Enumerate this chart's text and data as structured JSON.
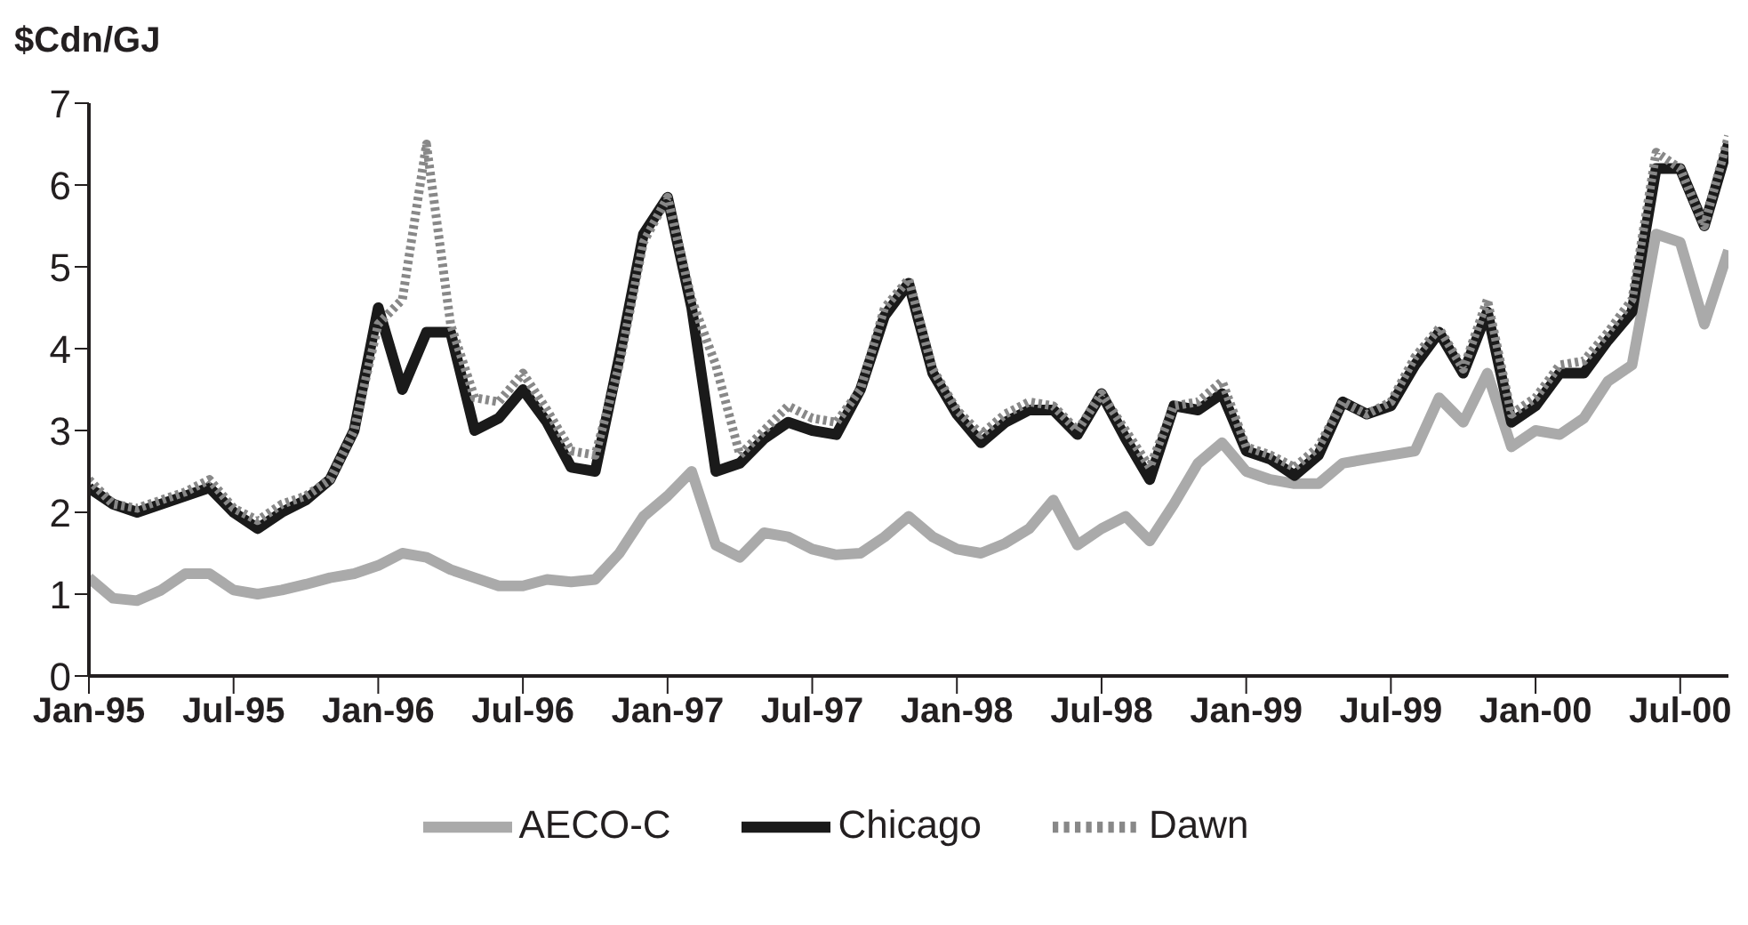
{
  "chart_data": {
    "type": "line",
    "ylabel": "$Cdn/GJ",
    "x": [
      "1995-01",
      "1995-02",
      "1995-03",
      "1995-04",
      "1995-05",
      "1995-06",
      "1995-07",
      "1995-08",
      "1995-09",
      "1995-10",
      "1995-11",
      "1995-12",
      "1996-01",
      "1996-02",
      "1996-03",
      "1996-04",
      "1996-05",
      "1996-06",
      "1996-07",
      "1996-08",
      "1996-09",
      "1996-10",
      "1996-11",
      "1996-12",
      "1997-01",
      "1997-02",
      "1997-03",
      "1997-04",
      "1997-05",
      "1997-06",
      "1997-07",
      "1997-08",
      "1997-09",
      "1997-10",
      "1997-11",
      "1997-12",
      "1998-01",
      "1998-02",
      "1998-03",
      "1998-04",
      "1998-05",
      "1998-06",
      "1998-07",
      "1998-08",
      "1998-09",
      "1998-10",
      "1998-11",
      "1998-12",
      "1999-01",
      "1999-02",
      "1999-03",
      "1999-04",
      "1999-05",
      "1999-06",
      "1999-07",
      "1999-08",
      "1999-09",
      "1999-10",
      "1999-11",
      "1999-12",
      "2000-01",
      "2000-02",
      "2000-03",
      "2000-04",
      "2000-05",
      "2000-06",
      "2000-07",
      "2000-08",
      "2000-09"
    ],
    "series": [
      {
        "name": "AECO-C",
        "color": "#aaaaaa",
        "line_style": "solid",
        "values": [
          1.2,
          0.95,
          0.92,
          1.05,
          1.25,
          1.25,
          1.05,
          1.0,
          1.05,
          1.12,
          1.2,
          1.25,
          1.35,
          1.5,
          1.45,
          1.3,
          1.2,
          1.1,
          1.1,
          1.18,
          1.15,
          1.18,
          1.5,
          1.95,
          2.2,
          2.5,
          1.6,
          1.45,
          1.75,
          1.7,
          1.55,
          1.48,
          1.5,
          1.7,
          1.95,
          1.7,
          1.55,
          1.5,
          1.62,
          1.8,
          2.15,
          1.6,
          1.8,
          1.95,
          1.65,
          2.1,
          2.6,
          2.85,
          2.5,
          2.4,
          2.35,
          2.35,
          2.6,
          2.65,
          2.7,
          2.75,
          3.4,
          3.1,
          3.7,
          2.8,
          3.0,
          2.95,
          3.15,
          3.6,
          3.8,
          5.4,
          5.3,
          4.3,
          5.2
        ]
      },
      {
        "name": "Chicago",
        "color": "#1a1a1a",
        "line_style": "solid",
        "values": [
          2.3,
          2.1,
          2.0,
          2.1,
          2.2,
          2.3,
          2.0,
          1.8,
          2.0,
          2.15,
          2.4,
          3.0,
          4.5,
          3.5,
          4.2,
          4.2,
          3.0,
          3.15,
          3.5,
          3.1,
          2.55,
          2.5,
          3.9,
          5.4,
          5.85,
          4.5,
          2.5,
          2.6,
          2.9,
          3.1,
          3.0,
          2.95,
          3.5,
          4.4,
          4.8,
          3.7,
          3.2,
          2.85,
          3.1,
          3.25,
          3.25,
          2.95,
          3.45,
          2.9,
          2.4,
          3.3,
          3.25,
          3.45,
          2.75,
          2.65,
          2.45,
          2.7,
          3.35,
          3.2,
          3.3,
          3.8,
          4.2,
          3.7,
          4.45,
          3.1,
          3.3,
          3.7,
          3.7,
          4.1,
          4.45,
          6.2,
          6.2,
          5.5,
          6.5
        ]
      },
      {
        "name": "Dawn",
        "color": "#888888",
        "line_style": "dotted",
        "values": [
          2.4,
          2.1,
          2.05,
          2.15,
          2.25,
          2.4,
          2.05,
          1.9,
          2.1,
          2.2,
          2.4,
          3.0,
          4.3,
          4.6,
          6.5,
          4.3,
          3.4,
          3.35,
          3.7,
          3.25,
          2.75,
          2.7,
          3.8,
          5.3,
          5.85,
          4.6,
          3.8,
          2.7,
          3.0,
          3.3,
          3.15,
          3.1,
          3.5,
          4.5,
          4.85,
          3.75,
          3.25,
          2.95,
          3.2,
          3.35,
          3.3,
          3.0,
          3.45,
          3.0,
          2.55,
          3.3,
          3.35,
          3.6,
          2.8,
          2.7,
          2.55,
          2.8,
          3.35,
          3.2,
          3.35,
          3.9,
          4.25,
          3.75,
          4.6,
          3.2,
          3.4,
          3.8,
          3.85,
          4.2,
          4.6,
          6.4,
          6.2,
          5.5,
          6.6
        ]
      }
    ],
    "xlim": [
      "1995-01",
      "2000-09"
    ],
    "xticks": [
      {
        "value": "1995-01",
        "label": "Jan-95"
      },
      {
        "value": "1995-07",
        "label": "Jul-95"
      },
      {
        "value": "1996-01",
        "label": "Jan-96"
      },
      {
        "value": "1996-07",
        "label": "Jul-96"
      },
      {
        "value": "1997-01",
        "label": "Jan-97"
      },
      {
        "value": "1997-07",
        "label": "Jul-97"
      },
      {
        "value": "1998-01",
        "label": "Jan-98"
      },
      {
        "value": "1998-07",
        "label": "Jul-98"
      },
      {
        "value": "1999-01",
        "label": "Jan-99"
      },
      {
        "value": "1999-07",
        "label": "Jul-99"
      },
      {
        "value": "2000-01",
        "label": "Jan-00"
      },
      {
        "value": "2000-07",
        "label": "Jul-00"
      }
    ],
    "ylim": [
      0,
      7
    ],
    "yticks": [
      0,
      1,
      2,
      3,
      4,
      5,
      6,
      7
    ],
    "grid": false,
    "legend": "bottom",
    "marker": "none"
  }
}
